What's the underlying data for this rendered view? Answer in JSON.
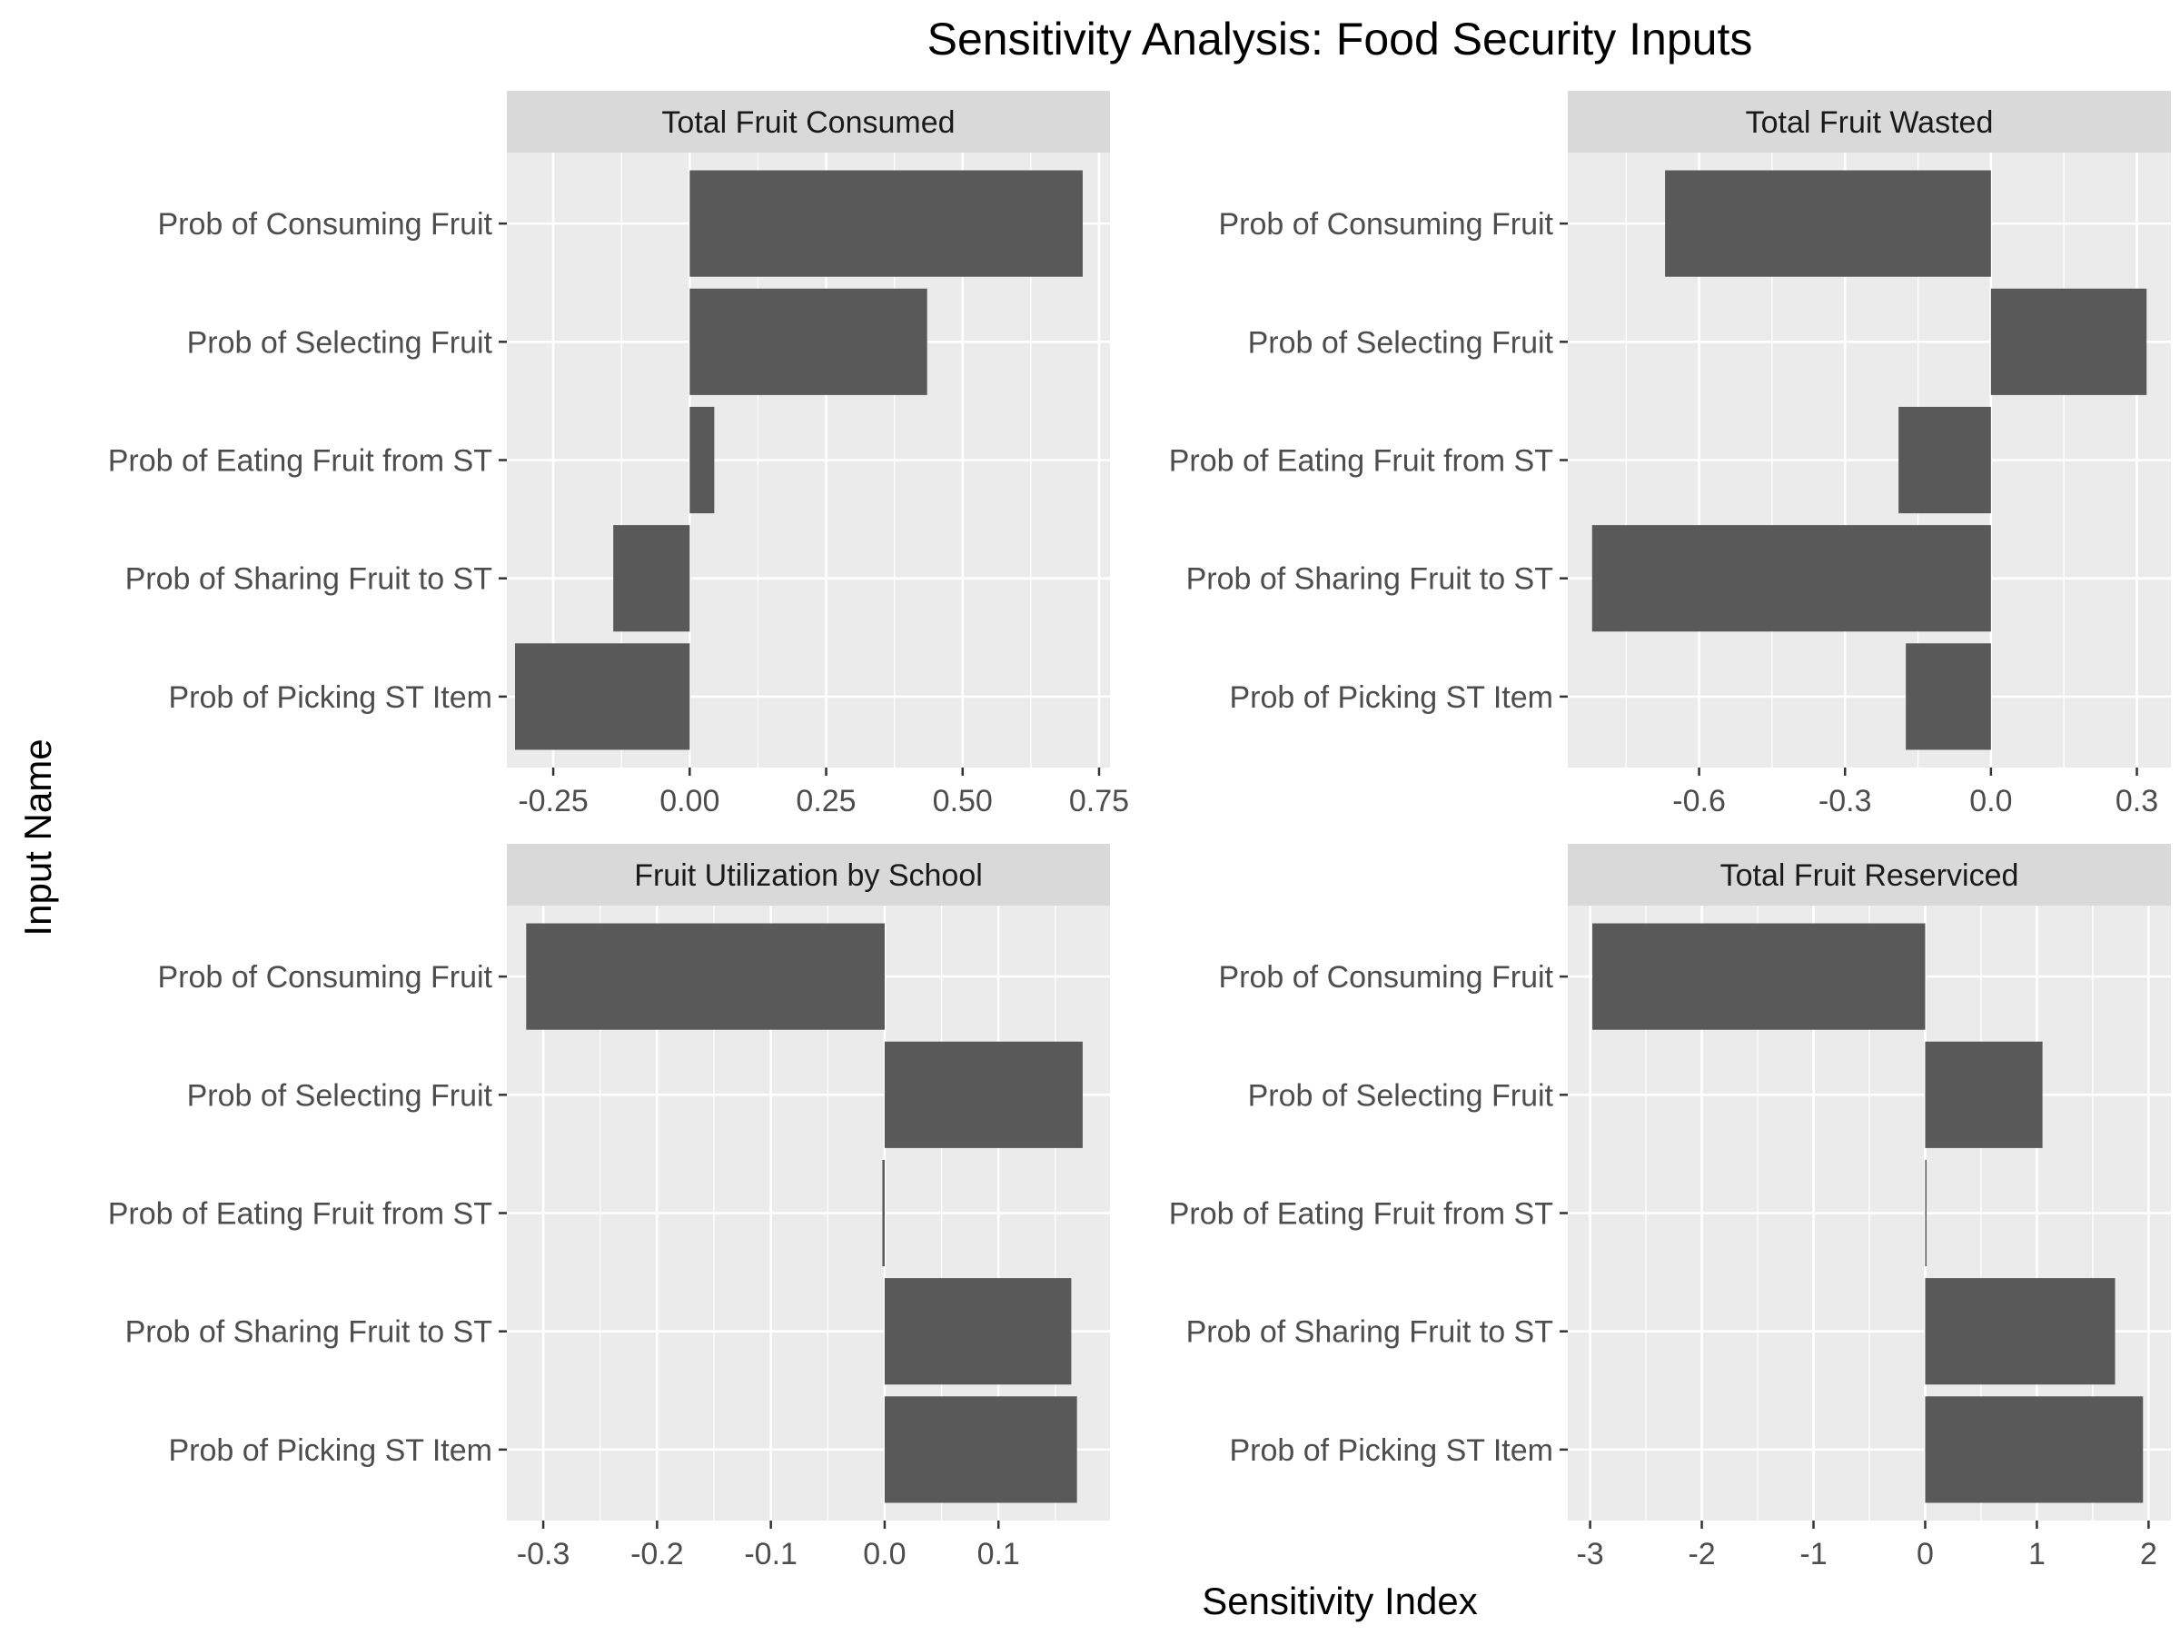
{
  "chart_data": {
    "type": "bar",
    "orientation": "horizontal",
    "title": "Sensitivity Analysis: Food Security Inputs",
    "xlabel": "Sensitivity Index",
    "ylabel": "Input Name",
    "grid": true,
    "categories": [
      "Prob of Consuming Fruit",
      "Prob of Selecting Fruit",
      "Prob of Eating Fruit from ST",
      "Prob of Sharing Fruit to ST",
      "Prob of Picking ST Item"
    ],
    "panels": [
      {
        "name": "Total Fruit Consumed",
        "values": [
          0.72,
          0.435,
          0.045,
          -0.14,
          -0.32
        ],
        "xlim": [
          -0.335,
          0.77
        ],
        "xticks": [
          -0.25,
          0.0,
          0.25,
          0.5,
          0.75
        ],
        "xtick_labels": [
          "-0.25",
          "0.00",
          "0.25",
          "0.50",
          "0.75"
        ]
      },
      {
        "name": "Total Fruit Wasted",
        "values": [
          -0.67,
          0.32,
          -0.19,
          -0.82,
          -0.175
        ],
        "xlim": [
          -0.87,
          0.37
        ],
        "xticks": [
          -0.6,
          -0.3,
          0.0,
          0.3
        ],
        "xtick_labels": [
          "-0.6",
          "-0.3",
          "0.0",
          "0.3"
        ]
      },
      {
        "name": "Fruit Utilization by School",
        "values": [
          -0.315,
          0.174,
          -0.002,
          0.164,
          0.169
        ],
        "xlim": [
          -0.332,
          0.198
        ],
        "xticks": [
          -0.3,
          -0.2,
          -0.1,
          0.0,
          0.1
        ],
        "xtick_labels": [
          "-0.3",
          "-0.2",
          "-0.1",
          "0.0",
          "0.1"
        ]
      },
      {
        "name": "Total Fruit Reserviced",
        "values": [
          -2.98,
          1.05,
          0.01,
          1.7,
          1.95
        ],
        "xlim": [
          -3.2,
          2.2
        ],
        "xticks": [
          -3,
          -2,
          -1,
          0,
          1,
          2
        ],
        "xtick_labels": [
          "-3",
          "-2",
          "-1",
          "0",
          "1",
          "2"
        ]
      }
    ]
  },
  "colors": {
    "bar": "#595959",
    "panel_bg": "#ebebeb",
    "strip_bg": "#d9d9d9",
    "grid": "#ffffff",
    "tick": "#333333"
  }
}
